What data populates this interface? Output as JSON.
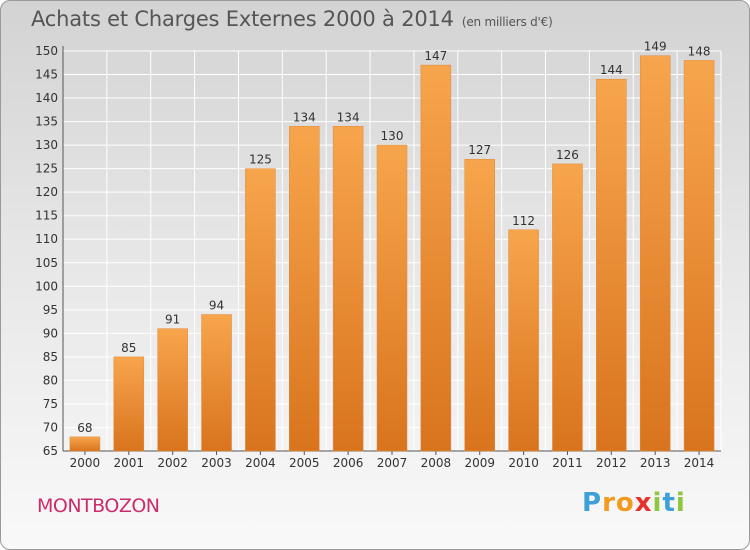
{
  "chart_data": {
    "type": "bar",
    "title": "Achats et Charges Externes 2000 à 2014",
    "subtitle": "(en milliers d'€)",
    "xlabel": "",
    "ylabel": "",
    "categories": [
      "2000",
      "2001",
      "2002",
      "2003",
      "2004",
      "2005",
      "2006",
      "2007",
      "2008",
      "2009",
      "2010",
      "2011",
      "2012",
      "2013",
      "2014"
    ],
    "values": [
      68,
      85,
      91,
      94,
      125,
      134,
      134,
      130,
      147,
      127,
      112,
      126,
      144,
      149,
      148
    ],
    "data_labels": [
      "68",
      "85",
      "91",
      "94",
      "125",
      "134",
      "134",
      "130",
      "147",
      "127",
      "112",
      "126",
      "144",
      "149",
      "148"
    ],
    "ylim": [
      65,
      150
    ],
    "yticks": [
      65,
      70,
      75,
      80,
      85,
      90,
      95,
      100,
      105,
      110,
      115,
      120,
      125,
      130,
      135,
      140,
      145,
      150
    ],
    "grid": true,
    "legend": "none",
    "colors": {
      "bar_light": "#f7a54c",
      "bar_dark": "#d9741e",
      "grid": "#ffffff"
    }
  },
  "footer": {
    "commune": "MONTBOZON",
    "brand": {
      "letters": [
        "P",
        "r",
        "o",
        "x",
        "i",
        "t",
        "i"
      ],
      "colors": [
        "#3da0d8",
        "#f29a1e",
        "#f29a1e",
        "#e8312b",
        "#8dc63f",
        "#3da0d8",
        "#8dc63f"
      ]
    }
  }
}
